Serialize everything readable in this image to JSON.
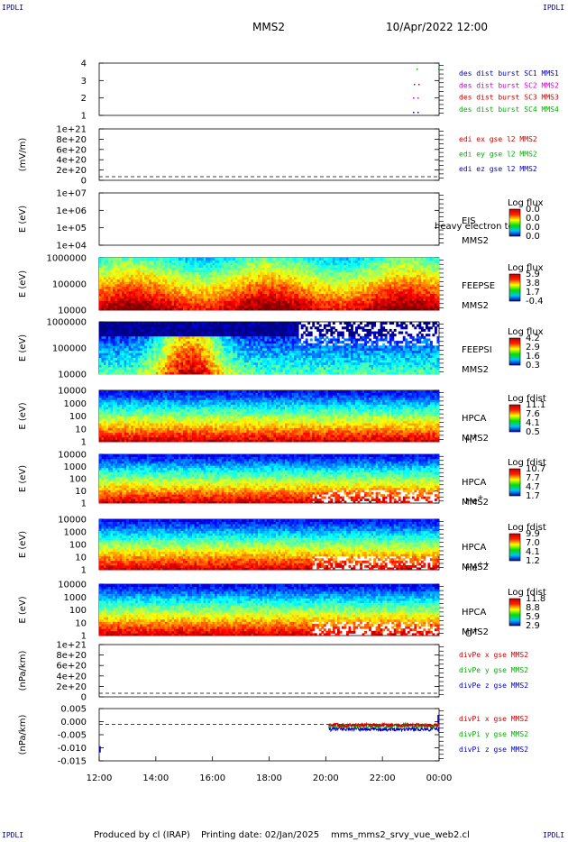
{
  "header": {
    "corner_tl": "IPDLI",
    "corner_tr": "IPDLI",
    "corner_bl": "IPDLI",
    "corner_br": "IPDLI",
    "spacecraft": "MMS2",
    "datetime": "10/Apr/2022 12:00"
  },
  "footer": {
    "produced_by": "Produced by cl (IRAP)",
    "printing_date": "Printing date: 02/Jan/2025",
    "file": "mms_mms2_srvy_vue_web2.cl"
  },
  "chart_data": {
    "type": "heatmap",
    "x_ticks": [
      "12:00",
      "14:00",
      "16:00",
      "18:00",
      "20:00",
      "22:00",
      "00:00"
    ],
    "panels": [
      {
        "id": "burst",
        "type": "scatter",
        "ylabel": "",
        "yticks": [
          "1",
          "2",
          "3",
          "4"
        ],
        "legend": [
          {
            "label": "des dist burst SC1 MMS1",
            "color": "#0000c0"
          },
          {
            "label": "des dist burst SC2 MMS2",
            "color": "#d000d0"
          },
          {
            "label": "des dist burst SC3 MMS3",
            "color": "#d00000"
          },
          {
            "label": "des dist burst SC4 MMS4",
            "color": "#00b000"
          }
        ]
      },
      {
        "id": "edi",
        "type": "line",
        "ylabel": "(mV/m)",
        "yticks": [
          "0",
          "2e+20",
          "4e+20",
          "6e+20",
          "8e+20",
          "1e+21"
        ],
        "legend": [
          {
            "label": "edi ex gse l2 MMS2",
            "color": "#d00000"
          },
          {
            "label": "edi ey gse l2 MMS2",
            "color": "#00b000"
          },
          {
            "label": "edi ez gse l2 MMS2",
            "color": "#0000c0"
          }
        ]
      },
      {
        "id": "eis",
        "type": "heatmap",
        "ylabel": "E (eV)",
        "yticks": [
          "1e+04",
          "1e+05",
          "1e+06",
          "1e+07"
        ],
        "labels": [
          "EIS",
          "MMS2"
        ],
        "overlay_text": "heavy electron to",
        "cbar_title": "Log flux",
        "cbar_ticks": [
          "0.0",
          "0.0",
          "0.0",
          "0.0"
        ]
      },
      {
        "id": "feepse",
        "type": "heatmap",
        "ylabel": "E (eV)",
        "yticks": [
          "10000",
          "100000",
          "1000000"
        ],
        "labels": [
          "FEEPSE",
          "MMS2"
        ],
        "cbar_title": "Log flux",
        "cbar_ticks": [
          "5.9",
          "3.8",
          "1.7",
          "-0.4"
        ]
      },
      {
        "id": "feepsi",
        "type": "heatmap",
        "ylabel": "E (eV)",
        "yticks": [
          "10000",
          "100000",
          "1000000"
        ],
        "labels": [
          "FEEPSI",
          "MMS2"
        ],
        "cbar_title": "Log flux",
        "cbar_ticks": [
          "4.2",
          "2.9",
          "1.6",
          "0.3"
        ]
      },
      {
        "id": "hpca_h",
        "type": "heatmap",
        "ylabel": "E (eV)",
        "yticks": [
          "1",
          "10",
          "100",
          "1000",
          "10000"
        ],
        "labels": [
          "HPCA",
          "MMS2"
        ],
        "species": "H",
        "species_sup": "+",
        "cbar_title": "Log fdist",
        "cbar_ticks": [
          "11.1",
          "7.6",
          "4.1",
          "0.5"
        ],
        "data_gap_hours": [
          14.25,
          17.0
        ]
      },
      {
        "id": "hpca_he",
        "type": "heatmap",
        "ylabel": "E (eV)",
        "yticks": [
          "1",
          "10",
          "100",
          "1000",
          "10000"
        ],
        "labels": [
          "HPCA",
          "MMS2"
        ],
        "species": "He",
        "species_sup": "+",
        "cbar_title": "Log fdist",
        "cbar_ticks": [
          "10.7",
          "7.7",
          "4.7",
          "1.7"
        ],
        "data_gap_hours": [
          14.25,
          17.0
        ]
      },
      {
        "id": "hpca_he2",
        "type": "heatmap",
        "ylabel": "E (eV)",
        "yticks": [
          "1",
          "10",
          "100",
          "1000",
          "10000"
        ],
        "labels": [
          "HPCA",
          "MMS2"
        ],
        "species": "He",
        "species_sup": "++",
        "cbar_title": "Log fdist",
        "cbar_ticks": [
          "9.9",
          "7.0",
          "4.1",
          "1.2"
        ],
        "data_gap_hours": [
          14.25,
          17.0
        ]
      },
      {
        "id": "hpca_o",
        "type": "heatmap",
        "ylabel": "E (eV)",
        "yticks": [
          "1",
          "10",
          "100",
          "1000",
          "10000"
        ],
        "labels": [
          "HPCA",
          "MMS2"
        ],
        "species": "O",
        "species_sup": "+",
        "cbar_title": "Log fdist",
        "cbar_ticks": [
          "11.8",
          "8.8",
          "5.9",
          "2.9"
        ],
        "data_gap_hours": [
          14.25,
          17.0
        ]
      },
      {
        "id": "divpe",
        "type": "line",
        "ylabel": "(nPa/km)",
        "yticks": [
          "0",
          "2e+20",
          "4e+20",
          "6e+20",
          "8e+20",
          "1e+21"
        ],
        "legend": [
          {
            "label": "divPe x gse MMS2",
            "color": "#d00000"
          },
          {
            "label": "divPe y gse MMS2",
            "color": "#00b000"
          },
          {
            "label": "divPe z gse MMS2",
            "color": "#0000c0"
          }
        ]
      },
      {
        "id": "divpi",
        "type": "line",
        "ylabel": "(nPa/km)",
        "yticks": [
          "-0.015",
          "-0.010",
          "-0.005",
          "0.000",
          "0.005"
        ],
        "ylim": [
          -0.0175,
          0.0075
        ],
        "legend": [
          {
            "label": "divPi x gse MMS2",
            "color": "#d00000"
          },
          {
            "label": "divPi y gse MMS2",
            "color": "#00b000"
          },
          {
            "label": "divPi z gse MMS2",
            "color": "#0000c0"
          }
        ]
      }
    ]
  }
}
